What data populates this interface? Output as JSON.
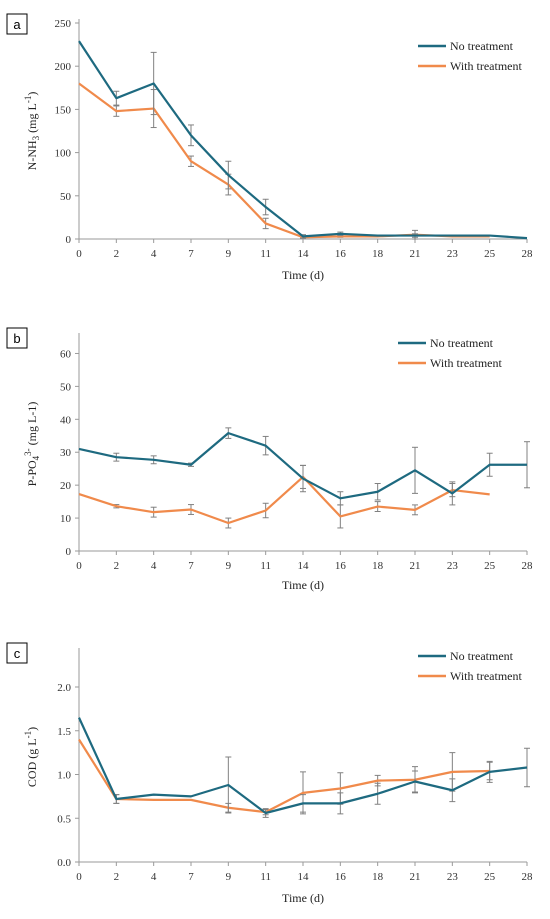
{
  "colors": {
    "no_treatment": "#1e6a80",
    "with_treatment": "#f08a4b",
    "error_bar": "#808080",
    "axis": "#9a9a9a"
  },
  "chart_data": [
    {
      "panel": "a",
      "type": "line",
      "xlabel": "Time  (d)",
      "ylabel_main": "N-NH",
      "ylabel_sub": "3",
      "ylabel_rest": " (mg L",
      "ylabel_sup": "-1",
      "ylabel_end": ")",
      "categories": [
        "0",
        "2",
        "4",
        "7",
        "9",
        "11",
        "14",
        "16",
        "18",
        "21",
        "23",
        "25",
        "28"
      ],
      "ylim": [
        0,
        250
      ],
      "yticks": [
        "0",
        "50",
        "100",
        "150",
        "200",
        "250"
      ],
      "legend": [
        "No treatment",
        "With treatment"
      ],
      "legend_position": "top-right",
      "series": [
        {
          "name": "No treatment",
          "values": [
            229,
            163,
            180,
            120,
            74,
            37,
            3,
            6,
            4,
            4,
            4,
            4,
            1
          ],
          "errors": [
            0,
            8,
            36,
            12,
            16,
            9,
            2,
            2,
            0,
            2,
            0,
            0,
            0
          ]
        },
        {
          "name": "With treatment",
          "values": [
            180,
            148,
            151,
            90,
            63,
            18,
            2,
            3,
            3,
            5,
            3,
            3,
            null
          ],
          "errors": [
            0,
            6,
            22,
            6,
            12,
            6,
            1,
            1,
            0,
            5,
            0,
            0,
            0
          ]
        }
      ]
    },
    {
      "panel": "b",
      "type": "line",
      "xlabel": "Time  (d)",
      "ylabel_main": "P-PO",
      "ylabel_sub": "4",
      "ylabel_rest": "",
      "ylabel_sup": "3-",
      "ylabel_end": " (mg L-1)",
      "categories": [
        "0",
        "2",
        "4",
        "7",
        "9",
        "11",
        "14",
        "16",
        "18",
        "21",
        "23",
        "25",
        "28"
      ],
      "ylim": [
        0,
        65
      ],
      "yticks": [
        "0",
        "10",
        "20",
        "30",
        "40",
        "50",
        "60"
      ],
      "legend": [
        "No treatment",
        "With treatment"
      ],
      "legend_position": "top-right",
      "series": [
        {
          "name": "No treatment",
          "values": [
            31,
            28.5,
            27.7,
            26.2,
            35.8,
            32,
            22,
            16,
            18,
            24.5,
            17.5,
            26.2,
            26.2
          ],
          "errors": [
            0,
            1.2,
            1.2,
            0.5,
            1.6,
            2.8,
            4,
            2,
            2.5,
            7,
            3.5,
            3.5,
            7
          ]
        },
        {
          "name": "With treatment",
          "values": [
            17.3,
            13.6,
            11.8,
            12.6,
            8.5,
            12.3,
            22.5,
            10.5,
            13.5,
            12.5,
            18.5,
            17.2,
            null
          ],
          "errors": [
            0,
            0.5,
            1.5,
            1.5,
            1.5,
            2.2,
            3.5,
            3.5,
            1.5,
            1.5,
            2,
            0,
            0
          ]
        }
      ]
    },
    {
      "panel": "c",
      "type": "line",
      "xlabel": "Time  (d)",
      "ylabel_main": "COD (g L",
      "ylabel_sub": "",
      "ylabel_rest": "",
      "ylabel_sup": "-1",
      "ylabel_end": ")",
      "categories": [
        "0",
        "2",
        "4",
        "7",
        "9",
        "11",
        "14",
        "16",
        "18",
        "21",
        "23",
        "25",
        "28"
      ],
      "ylim": [
        0,
        2.4
      ],
      "yticks": [
        "0.0",
        "0.5",
        "1.0",
        "1.5",
        "2.0"
      ],
      "legend": [
        "No treatment",
        "With treatment"
      ],
      "legend_position": "top-right",
      "series": [
        {
          "name": "No treatment",
          "values": [
            1.65,
            0.72,
            0.77,
            0.75,
            0.88,
            0.56,
            0.67,
            0.67,
            0.78,
            0.92,
            0.82,
            1.03,
            1.08
          ],
          "errors": [
            0,
            0.05,
            0,
            0,
            0.32,
            0.05,
            0.1,
            0.12,
            0.12,
            0.12,
            0.13,
            0.12,
            0.22
          ]
        },
        {
          "name": "With treatment",
          "values": [
            1.4,
            0.72,
            0.71,
            0.71,
            0.62,
            0.57,
            0.79,
            0.84,
            0.93,
            0.94,
            1.03,
            1.04,
            null
          ],
          "errors": [
            0,
            0.05,
            0,
            0,
            0.05,
            0.03,
            0.24,
            0.18,
            0.06,
            0.15,
            0.22,
            0.1,
            0
          ]
        }
      ]
    }
  ]
}
